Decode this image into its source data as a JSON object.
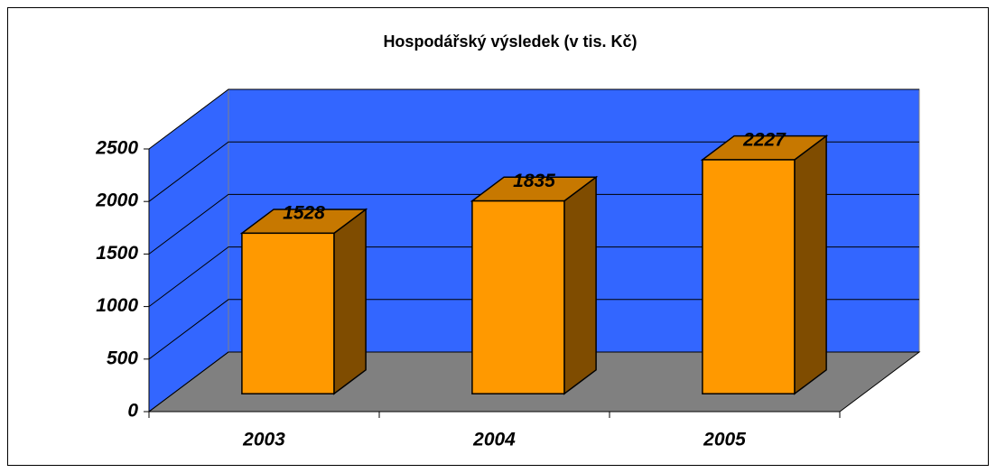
{
  "chart_data": {
    "type": "bar3d",
    "title": "Hospodářský výsledek (v tis. Kč)",
    "categories": [
      "2003",
      "2004",
      "2005"
    ],
    "values": [
      1528,
      1835,
      2227
    ],
    "color": "#ff9900",
    "wall_color": "#3366ff",
    "floor_color": "#808080",
    "ylim": [
      0,
      2500
    ],
    "yticks": [
      0,
      500,
      1000,
      1500,
      2000,
      2500
    ],
    "grid": true
  }
}
